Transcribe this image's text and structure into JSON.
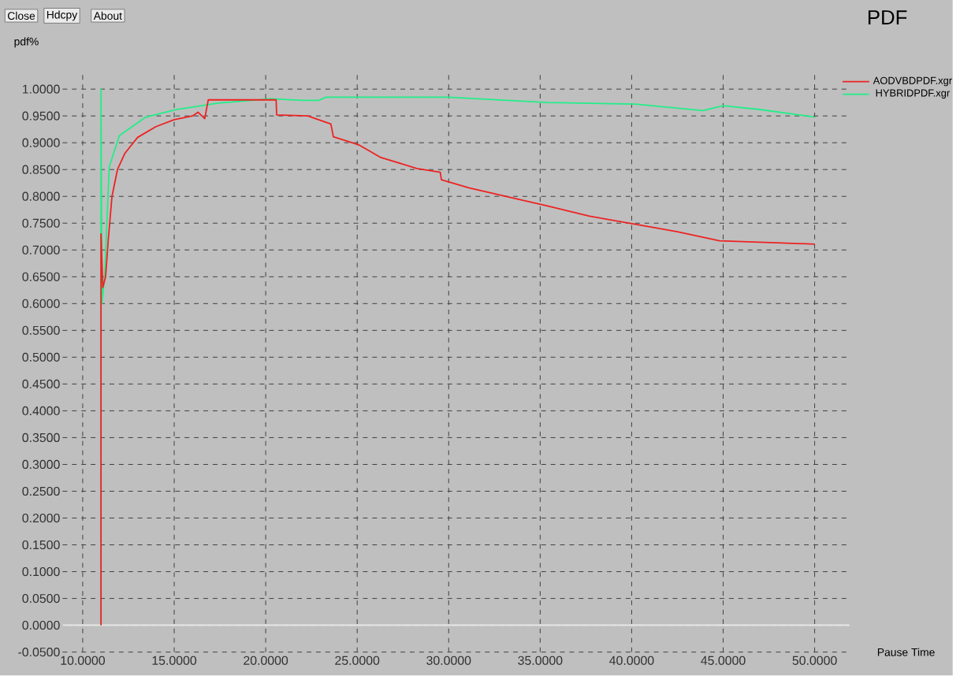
{
  "chart_data": {
    "type": "line",
    "title": "PDF",
    "xlabel": "Pause Time",
    "ylabel": "pdf%",
    "annotations": [
      "Close",
      "Hdcpy",
      "About"
    ],
    "xlim": [
      8.9,
      51.9
    ],
    "ylim": [
      -0.05,
      1.035
    ],
    "xticks": [
      {
        "value": 10,
        "label": "10.0000"
      },
      {
        "value": 15,
        "label": "15.0000"
      },
      {
        "value": 20,
        "label": "20.0000"
      },
      {
        "value": 25,
        "label": "25.0000"
      },
      {
        "value": 30,
        "label": "30.0000"
      },
      {
        "value": 35,
        "label": "35.0000"
      },
      {
        "value": 40,
        "label": "40.0000"
      },
      {
        "value": 45,
        "label": "45.0000"
      },
      {
        "value": 50,
        "label": "50.0000"
      }
    ],
    "yticks": [
      {
        "value": -0.05,
        "label": "-0.0500"
      },
      {
        "value": 0,
        "label": "0.0000"
      },
      {
        "value": 0.05,
        "label": "0.0500"
      },
      {
        "value": 0.1,
        "label": "0.1000"
      },
      {
        "value": 0.15,
        "label": "0.1500"
      },
      {
        "value": 0.2,
        "label": "0.2000"
      },
      {
        "value": 0.25,
        "label": "0.2500"
      },
      {
        "value": 0.3,
        "label": "0.3000"
      },
      {
        "value": 0.35,
        "label": "0.3500"
      },
      {
        "value": 0.4,
        "label": "0.4000"
      },
      {
        "value": 0.45,
        "label": "0.4500"
      },
      {
        "value": 0.5,
        "label": "0.5000"
      },
      {
        "value": 0.55,
        "label": "0.5500"
      },
      {
        "value": 0.6,
        "label": "0.6000"
      },
      {
        "value": 0.65,
        "label": "0.6500"
      },
      {
        "value": 0.7,
        "label": "0.7000"
      },
      {
        "value": 0.75,
        "label": "0.7500"
      },
      {
        "value": 0.8,
        "label": "0.8000"
      },
      {
        "value": 0.85,
        "label": "0.8500"
      },
      {
        "value": 0.9,
        "label": "0.9000"
      },
      {
        "value": 0.95,
        "label": "0.9500"
      },
      {
        "value": 1.0,
        "label": "1.0000"
      }
    ],
    "grid": true,
    "legend": "top right",
    "marker": "none",
    "line_style": "solid",
    "ref_lines": [
      {
        "axis": "y",
        "value": 0,
        "color": "#e8e8e8"
      }
    ],
    "series": [
      {
        "name": "AODVBDPDF.xgr",
        "color": "#ee2222",
        "x": [
          11.0,
          11.0,
          11.1,
          11.25,
          11.4,
          11.6,
          11.9,
          12.3,
          13.0,
          14.0,
          15.0,
          16.0,
          16.3,
          16.67,
          16.86,
          20.57,
          20.6,
          22.3,
          23.56,
          23.7,
          25.1,
          26.26,
          28.26,
          29.54,
          29.6,
          31.1,
          35.4,
          37.7,
          40.2,
          42.5,
          44.8,
          48.2,
          50.0
        ],
        "values": [
          0.0,
          0.73,
          0.63,
          0.65,
          0.72,
          0.8,
          0.85,
          0.88,
          0.91,
          0.93,
          0.943,
          0.95,
          0.957,
          0.945,
          0.98,
          0.98,
          0.952,
          0.95,
          0.935,
          0.911,
          0.896,
          0.873,
          0.852,
          0.845,
          0.831,
          0.816,
          0.782,
          0.763,
          0.748,
          0.734,
          0.717,
          0.713,
          0.711
        ]
      },
      {
        "name": "HYBRIDPDF.xgr",
        "color": "#22ee88",
        "x": [
          11.0,
          11.0,
          11.05,
          11.2,
          11.45,
          12.0,
          13.45,
          15.15,
          17.4,
          20.3,
          22.0,
          22.9,
          23.3,
          30.0,
          35.4,
          40.2,
          43.9,
          45.0,
          47.0,
          50.0
        ],
        "values": [
          0.0,
          1.0,
          0.6,
          0.651,
          0.855,
          0.913,
          0.948,
          0.962,
          0.974,
          0.982,
          0.979,
          0.979,
          0.985,
          0.985,
          0.975,
          0.972,
          0.96,
          0.969,
          0.962,
          0.948
        ]
      }
    ]
  }
}
